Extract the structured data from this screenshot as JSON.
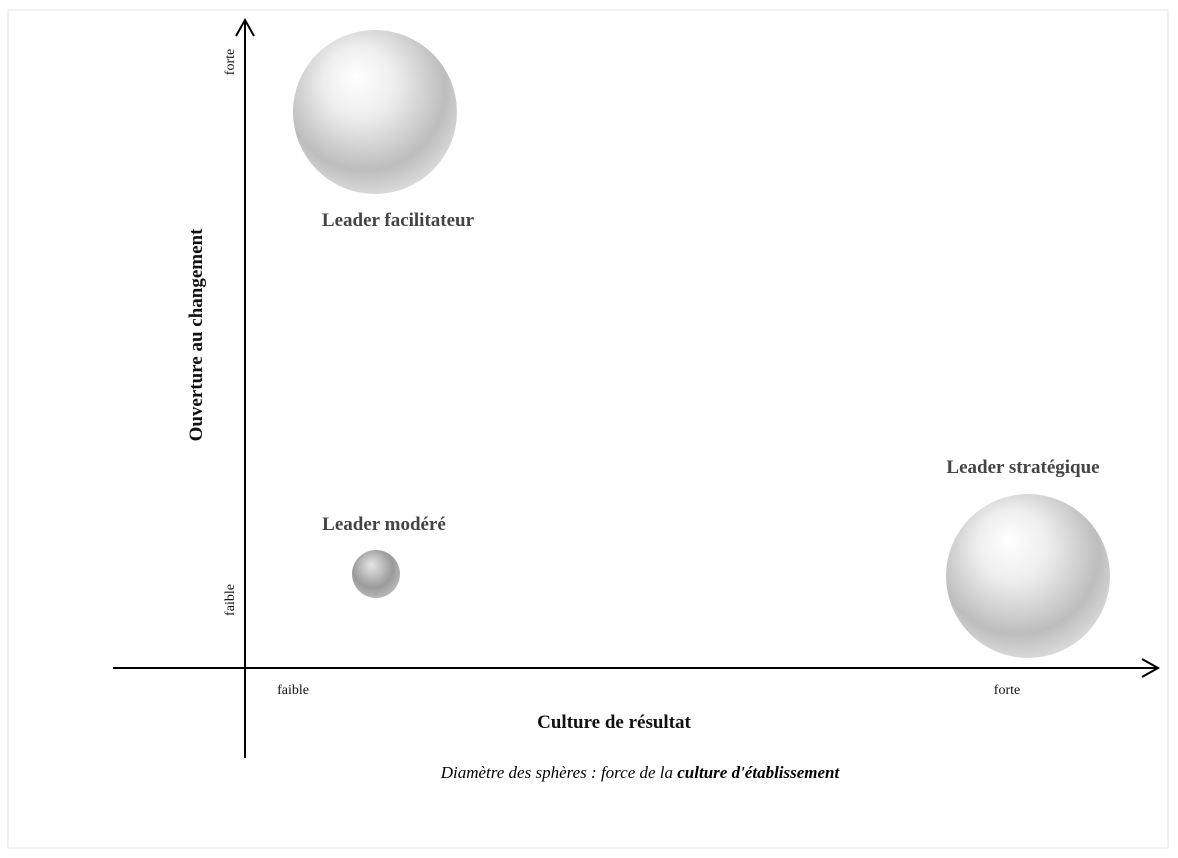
{
  "axes": {
    "x": {
      "title": "Culture de résultat",
      "low": "faible",
      "high": "forte"
    },
    "y": {
      "title": "Ouverture au changement",
      "low": "faible",
      "high": "forte"
    }
  },
  "nodes": [
    {
      "label": "Leader facilitateur"
    },
    {
      "label": "Leader modéré"
    },
    {
      "label": "Leader stratégique"
    }
  ],
  "caption": {
    "text": "Diamètre des sphères : force de la ",
    "emphasis": "culture d'établissement"
  }
}
